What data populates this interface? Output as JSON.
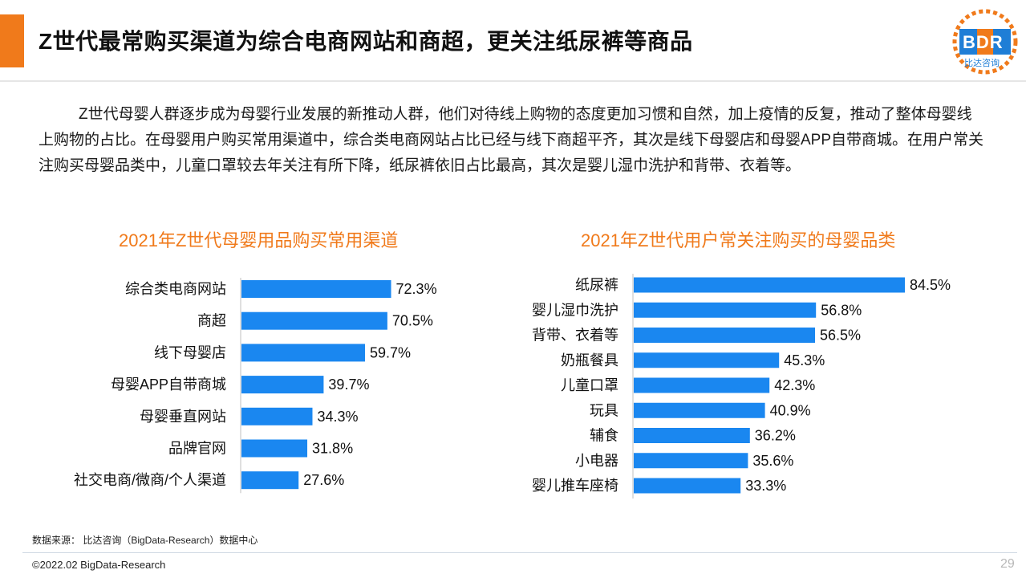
{
  "header": {
    "title": "Z世代最常购买渠道为综合电商网站和商超，更关注纸尿裤等商品",
    "accent_color": "#f07a1b"
  },
  "logo": {
    "text": "BDR",
    "sub": "比达咨询",
    "colors": {
      "blue": "#1f7ed6",
      "orange": "#f07a1b"
    }
  },
  "paragraph": "Z世代母婴人群逐步成为母婴行业发展的新推动人群，他们对待线上购物的态度更加习惯和自然，加上疫情的反复，推动了整体母婴线上购物的占比。在母婴用户购买常用渠道中，综合类电商网站占比已经与线下商超平齐，其次是线下母婴店和母婴APP自带商城。在用户常关注购买母婴品类中，儿童口罩较去年关注有所下降，纸尿裤依旧占比最高，其次是婴儿湿巾洗护和背带、衣着等。",
  "chart_data": [
    {
      "type": "bar",
      "orientation": "horizontal",
      "title": "2021年Z世代母婴用品购买常用渠道",
      "categories": [
        "综合类电商网站",
        "商超",
        "线下母婴店",
        "母婴APP自带商城",
        "母婴垂直网站",
        "品牌官网",
        "社交电商/微商/个人渠道"
      ],
      "values": [
        72.3,
        70.5,
        59.7,
        39.7,
        34.3,
        31.8,
        27.6
      ],
      "unit": "%",
      "bar_color": "#1a87f0",
      "grid": false,
      "legend": false
    },
    {
      "type": "bar",
      "orientation": "horizontal",
      "title": "2021年Z世代用户常关注购买的母婴品类",
      "categories": [
        "纸尿裤",
        "婴儿湿巾洗护",
        "背带、衣着等",
        "奶瓶餐具",
        "儿童口罩",
        "玩具",
        "辅食",
        "小电器",
        "婴儿推车座椅"
      ],
      "values": [
        84.5,
        56.8,
        56.5,
        45.3,
        42.3,
        40.9,
        36.2,
        35.6,
        33.3
      ],
      "unit": "%",
      "bar_color": "#1a87f0",
      "grid": false,
      "legend": false
    }
  ],
  "footer": {
    "source": "数据来源： 比达咨询（BigData-Research）数据中心",
    "copyright": "©2022.02 BigData-Research",
    "page": "29"
  }
}
